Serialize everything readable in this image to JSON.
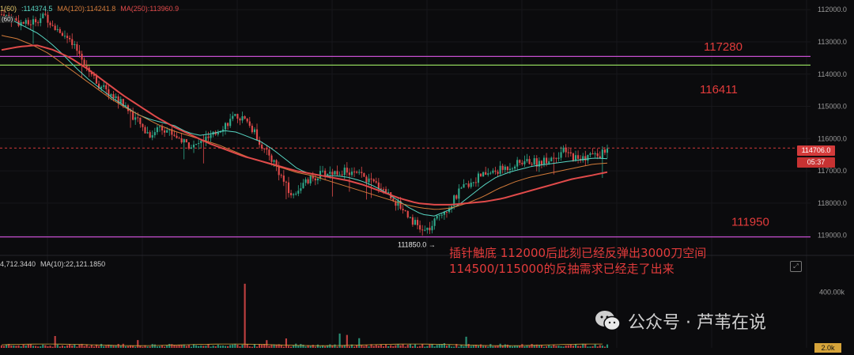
{
  "legend": {
    "items": [
      {
        "text": "1(60)",
        "color": "#e6c86a"
      },
      {
        "text": ":114374.5",
        "color": "#57d6c3"
      },
      {
        "text": "MA(120):114241.8",
        "color": "#d27b3a"
      },
      {
        "text": "MA(250):113960.9",
        "color": "#e04a4a"
      }
    ],
    "sub_label": "(60)"
  },
  "volume_legend": {
    "left_text": "4,712.3440",
    "ma_text": "MA(10):22,121.1850"
  },
  "price_axis": {
    "ticks": [
      "119000.0",
      "118000.0",
      "117000.0",
      "116000.0",
      "115000.0",
      "114000.0",
      "113000.0",
      "112000.0"
    ],
    "current_price": "114706.0",
    "countdown": "05:37"
  },
  "volume_axis": {
    "ticks": [
      "400.00k",
      "0"
    ],
    "current_volume": "2.0k"
  },
  "levels": [
    {
      "label": "117280",
      "color": "#c64fd0"
    },
    {
      "label": "116411",
      "color": "#8fd45a"
    },
    {
      "label": "111950",
      "color": "#c64fd0"
    }
  ],
  "low_marker": "111850.0",
  "annotation": {
    "line1": "插针触底 112000后此刻已经反弹出3000刀空间",
    "line2": "114500/115000的反抽需求已经走了出来"
  },
  "watermark": {
    "text": "公众号 · 芦苇在说",
    "icon": "wechat-icon"
  },
  "colors": {
    "up": "#2ea88a",
    "down": "#e04a4a",
    "ma_fast": "#57d6c3",
    "ma_mid": "#d27b3a",
    "ma_slow": "#e04a4a",
    "level_purple": "#c64fd0",
    "level_green": "#8fd45a"
  },
  "chart_data": {
    "type": "candlestick",
    "price_range": [
      111500,
      119300
    ],
    "y_ticks": [
      112000,
      113000,
      114000,
      115000,
      116000,
      117000,
      118000,
      119000
    ],
    "horizontal_levels": [
      117550,
      117280,
      111950
    ],
    "level_labels": [
      117280,
      116411,
      111950
    ],
    "current_price": 114706.0,
    "low_point": 111850.0,
    "close_path": [
      118850,
      118750,
      118600,
      118550,
      118700,
      118800,
      118500,
      118250,
      117900,
      117600,
      117100,
      116700,
      116450,
      116250,
      116050,
      115700,
      115350,
      115100,
      115400,
      115250,
      115050,
      114850,
      114750,
      114950,
      115050,
      115350,
      115550,
      115700,
      115500,
      115100,
      114600,
      114300,
      113750,
      113200,
      113500,
      113700,
      113850,
      113950,
      113950,
      114000,
      113900,
      113850,
      113650,
      113550,
      113300,
      113000,
      112750,
      112400,
      112100,
      112250,
      112700,
      112900,
      113300,
      113550,
      113750,
      113900,
      113950,
      114050,
      114150,
      114250,
      114300,
      114250,
      114350,
      114450,
      114600,
      114450,
      114350,
      114500,
      114450,
      114706
    ],
    "ma_fast": [
      118800,
      118650,
      118450,
      118250,
      117950,
      117600,
      117200,
      116850,
      116550,
      116250,
      116000,
      115750,
      115600,
      115500,
      115400,
      115200,
      115100,
      115150,
      115250,
      115200,
      115050,
      114900,
      114650,
      114350,
      114050,
      113900,
      113850,
      113850,
      113800,
      113700,
      113550,
      113350,
      113100,
      112850,
      112650,
      112600,
      112750,
      112950,
      113250,
      113550,
      113800,
      113950,
      114050,
      114150,
      114200,
      114250,
      114300,
      114350,
      114400,
      114374.5
    ],
    "ma120": [
      118200,
      118100,
      117900,
      117650,
      117300,
      116950,
      116600,
      116250,
      115950,
      115700,
      115450,
      115250,
      115100,
      114950,
      114800,
      114600,
      114400,
      114250,
      114100,
      113950,
      113850,
      113700,
      113550,
      113400,
      113250,
      113100,
      112950,
      112850,
      112800,
      112850,
      113000,
      113200,
      113450,
      113650,
      113800,
      113900,
      114000,
      114100,
      114200,
      114241.8
    ],
    "ma250": [
      117750,
      117850,
      117900,
      117750,
      117500,
      117150,
      116750,
      116350,
      116000,
      115650,
      115350,
      115100,
      114850,
      114650,
      114450,
      114300,
      114150,
      114000,
      113900,
      113800,
      113700,
      113550,
      113350,
      113150,
      113000,
      112950,
      112950,
      113000,
      113050,
      113150,
      113300,
      113450,
      113600,
      113750,
      113850,
      113960.9
    ],
    "volume_range": [
      0,
      500000
    ],
    "volume_ticks": [
      400000,
      0
    ]
  }
}
